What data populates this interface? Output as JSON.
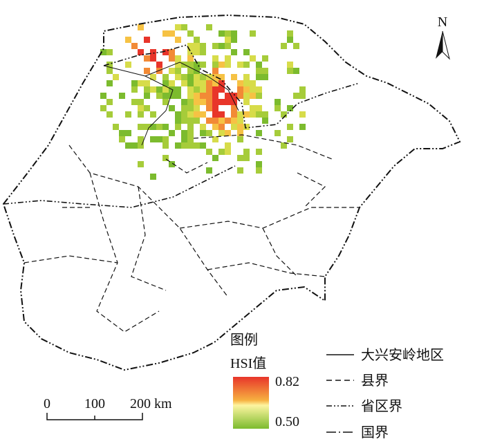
{
  "north": "N",
  "legend": {
    "title": "图例",
    "scale_title": "HSI值",
    "max": "0.82",
    "min": "0.50",
    "items": [
      "大兴安岭地区",
      "县界",
      "省区界",
      "国界"
    ]
  },
  "scale_bar": {
    "ticks": [
      "0",
      "100",
      "200 km"
    ]
  }
}
